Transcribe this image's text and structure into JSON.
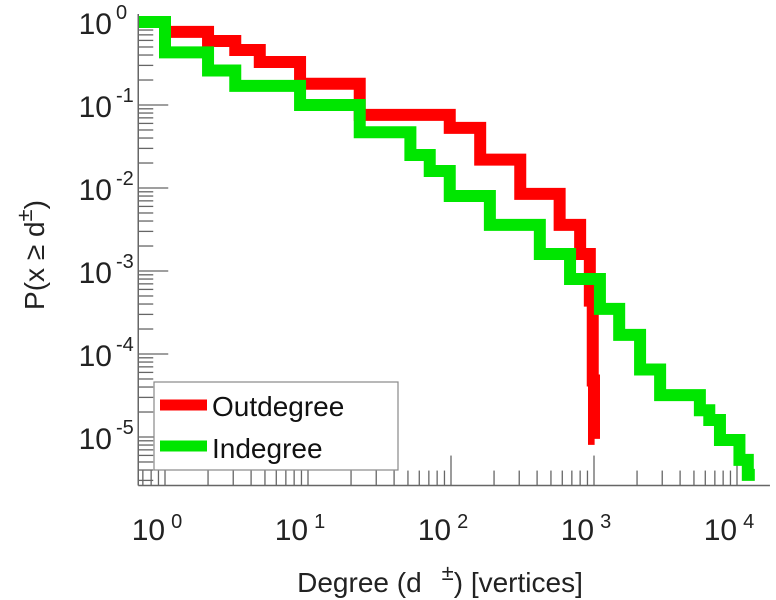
{
  "chart_data": {
    "type": "line",
    "title": "",
    "xlabel": "Degree (d ±) [vertices]",
    "xlabel_parts": {
      "before": "Degree (d",
      "sup": "±",
      "after": ") [vertices]"
    },
    "ylabel": "P(x ≥ d±)",
    "ylabel_parts": {
      "before": "P(x ≥ d",
      "sup": "±",
      "after": ")"
    },
    "xscale": "log",
    "yscale": "log",
    "xlim": [
      0.65,
      17000
    ],
    "ylim": [
      2.6e-06,
      1.25
    ],
    "x_ticks": [
      {
        "base": "10",
        "exp": "0",
        "value": 1
      },
      {
        "base": "10",
        "exp": "1",
        "value": 10
      },
      {
        "base": "10",
        "exp": "2",
        "value": 100
      },
      {
        "base": "10",
        "exp": "3",
        "value": 1000
      },
      {
        "base": "10",
        "exp": "4",
        "value": 10000
      }
    ],
    "y_ticks": [
      {
        "base": "10",
        "exp": "0",
        "value": 1
      },
      {
        "base": "10",
        "exp": "-1",
        "value": 0.1
      },
      {
        "base": "10",
        "exp": "-2",
        "value": 0.01
      },
      {
        "base": "10",
        "exp": "-3",
        "value": 0.001
      },
      {
        "base": "10",
        "exp": "-4",
        "value": 0.0001
      },
      {
        "base": "10",
        "exp": "-5",
        "value": 1e-05
      }
    ],
    "grid": false,
    "legend_position": "bottom-left",
    "series": [
      {
        "name": "Outdegree",
        "color": "#ff0000",
        "step": true,
        "x": [
          1.0,
          2.0,
          3.1,
          4.6,
          8.8,
          23,
          98,
          160,
          305,
          575,
          800,
          935,
          980,
          1000,
          1010
        ],
        "y": [
          0.76,
          0.59,
          0.46,
          0.33,
          0.18,
          0.076,
          0.053,
          0.022,
          0.0085,
          0.0036,
          0.0016,
          0.00044,
          4.8e-05,
          9.5e-06,
          9.5e-06
        ]
      },
      {
        "name": "Indegree",
        "color": "#00e600",
        "step": true,
        "x": [
          0.65,
          1.0,
          2.0,
          3.1,
          8.8,
          23,
          52,
          71,
          98,
          187,
          418,
          680,
          1100,
          1500,
          2100,
          2900,
          5500,
          6400,
          7600,
          10400,
          11900
        ],
        "y": [
          1.0,
          0.43,
          0.26,
          0.17,
          0.1,
          0.047,
          0.025,
          0.016,
          0.008,
          0.0036,
          0.0016,
          0.0008,
          0.00035,
          0.00017,
          6.5e-05,
          3.2e-05,
          2.1e-05,
          1.6e-05,
          9.2e-06,
          5.3e-06,
          3.5e-06
        ]
      }
    ]
  }
}
